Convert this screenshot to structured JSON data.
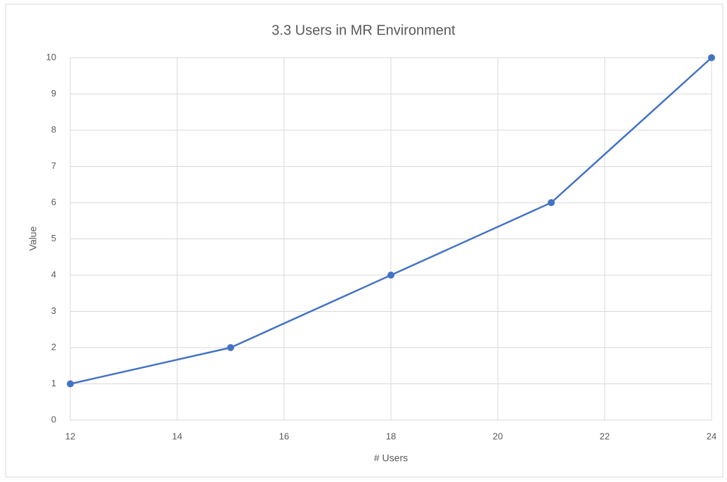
{
  "chart_data": {
    "type": "line",
    "title": "3.3 Users in MR Environment",
    "x_label": "# Users",
    "y_label": "Value",
    "x": [
      12,
      15,
      18,
      21,
      24
    ],
    "series": [
      {
        "name": "Value",
        "color": "#4472c4",
        "values": [
          1,
          2,
          4,
          6,
          10
        ]
      }
    ],
    "xlim": [
      12,
      24
    ],
    "xticks": [
      12,
      14,
      16,
      18,
      20,
      22,
      24
    ],
    "ylim": [
      0,
      10
    ],
    "yticks": [
      0,
      1,
      2,
      3,
      4,
      5,
      6,
      7,
      8,
      9,
      10
    ],
    "grid": true
  }
}
